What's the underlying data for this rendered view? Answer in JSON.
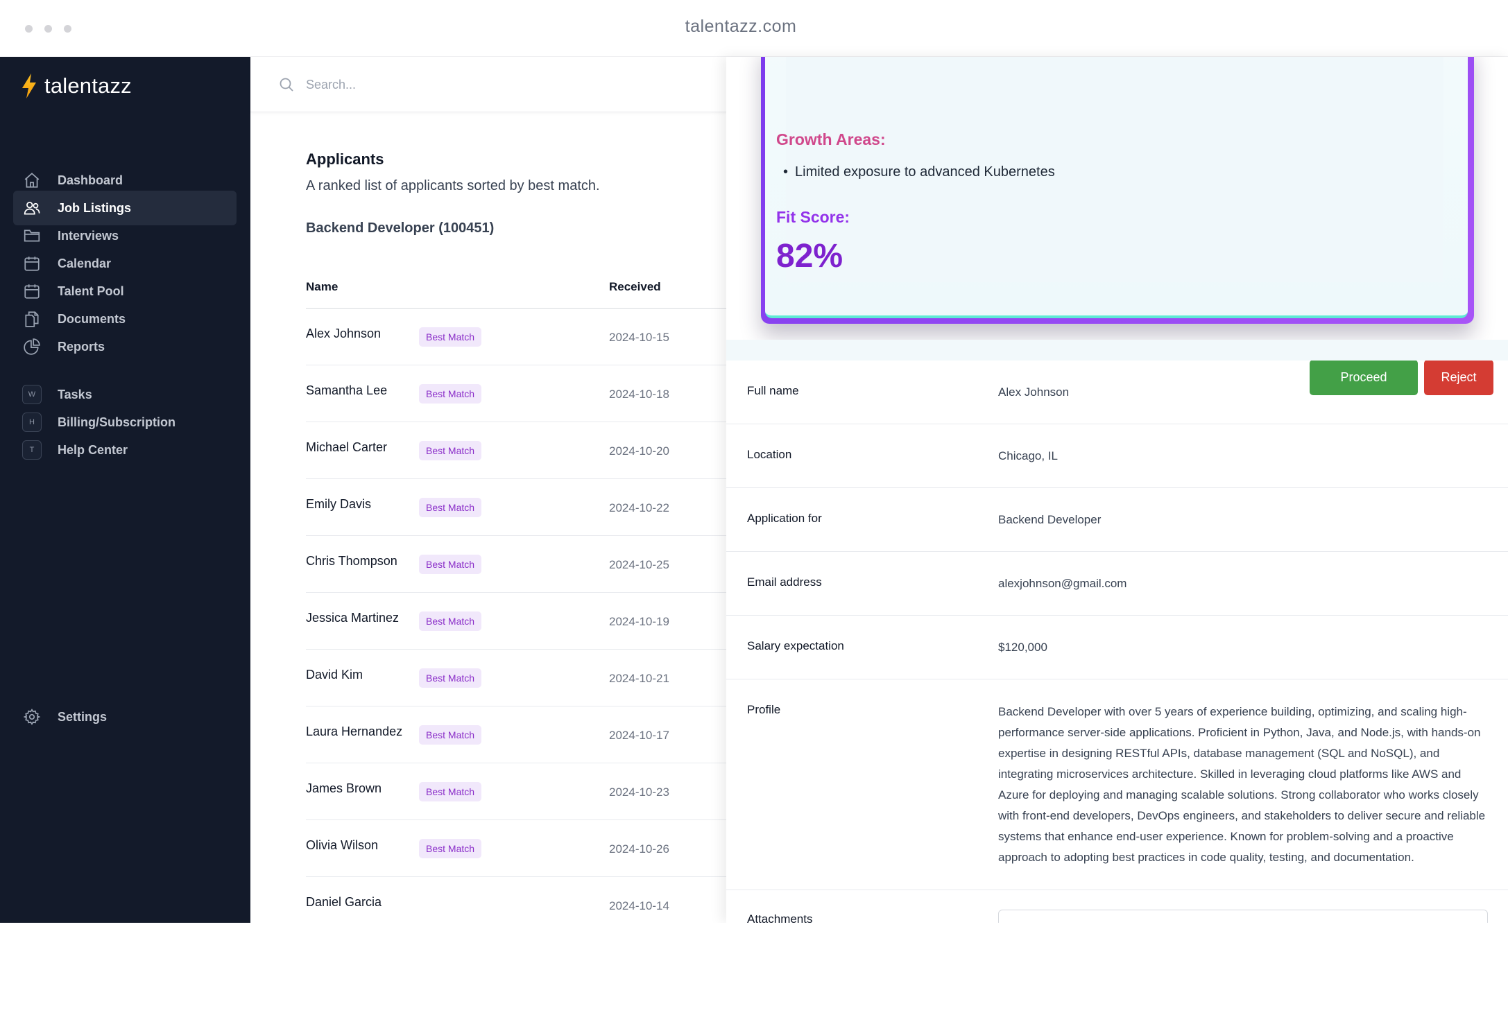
{
  "browser": {
    "url": "talentazz.com"
  },
  "brand": {
    "name": "talentazz"
  },
  "sidebar": {
    "items": [
      {
        "label": "Dashboard",
        "icon": "home-icon"
      },
      {
        "label": "Job Listings",
        "icon": "users-icon",
        "active": true
      },
      {
        "label": "Interviews",
        "icon": "folder-icon"
      },
      {
        "label": "Calendar",
        "icon": "calendar-icon"
      },
      {
        "label": "Talent Pool",
        "icon": "calendar-icon"
      },
      {
        "label": "Documents",
        "icon": "documents-icon"
      },
      {
        "label": "Reports",
        "icon": "pie-chart-icon"
      }
    ],
    "shortcuts": [
      {
        "key": "W",
        "label": "Tasks"
      },
      {
        "key": "H",
        "label": "Billing/Subscription"
      },
      {
        "key": "T",
        "label": "Help Center"
      }
    ],
    "settings_label": "Settings"
  },
  "search": {
    "placeholder": "Search..."
  },
  "applicants": {
    "title": "Applicants",
    "subtitle": "A ranked list of applicants sorted by best match.",
    "job": "Backend Developer (100451)",
    "columns": {
      "name": "Name",
      "received": "Received"
    },
    "rows": [
      {
        "name": "Alex Johnson",
        "badge": "Best Match",
        "received": "2024-10-15"
      },
      {
        "name": "Samantha Lee",
        "badge": "Best Match",
        "received": "2024-10-18"
      },
      {
        "name": "Michael Carter",
        "badge": "Best Match",
        "received": "2024-10-20"
      },
      {
        "name": "Emily Davis",
        "badge": "Best Match",
        "received": "2024-10-22"
      },
      {
        "name": "Chris Thompson",
        "badge": "Best Match",
        "received": "2024-10-25"
      },
      {
        "name": "Jessica Martinez",
        "badge": "Best Match",
        "received": "2024-10-19"
      },
      {
        "name": "David Kim",
        "badge": "Best Match",
        "received": "2024-10-21"
      },
      {
        "name": "Laura Hernandez",
        "badge": "Best Match",
        "received": "2024-10-17"
      },
      {
        "name": "James Brown",
        "badge": "Best Match",
        "received": "2024-10-23"
      },
      {
        "name": "Olivia Wilson",
        "badge": "Best Match",
        "received": "2024-10-26"
      },
      {
        "name": "Daniel Garcia",
        "badge": "",
        "received": "2024-10-14"
      }
    ]
  },
  "analysis": {
    "growth_title": "Growth Areas:",
    "growth_items": [
      "Limited exposure to advanced Kubernetes"
    ],
    "fit_title": "Fit Score:",
    "fit_score": "82%"
  },
  "actions": {
    "proceed": "Proceed",
    "reject": "Reject"
  },
  "details": {
    "full_name_label": "Full name",
    "full_name": "Alex Johnson",
    "location_label": "Location",
    "location": "Chicago, IL",
    "application_label": "Application for",
    "application": "Backend Developer",
    "email_label": "Email address",
    "email": "alexjohnson@gmail.com",
    "salary_label": "Salary expectation",
    "salary": "$120,000",
    "profile_label": "Profile",
    "profile": "Backend Developer with over 5 years of experience building, optimizing, and scaling high-performance server-side applications. Proficient in Python, Java, and Node.js, with hands-on expertise in designing RESTful APIs, database management (SQL and NoSQL), and integrating microservices architecture. Skilled in leveraging cloud platforms like AWS and Azure for deploying and managing scalable solutions. Strong collaborator who works closely with front-end developers, DevOps engineers, and stakeholders to deliver secure and reliable systems that enhance end-user experience. Known for problem-solving and a proactive approach to adopting best practices in code quality, testing, and documentation.",
    "attachments_label": "Attachments"
  },
  "colors": {
    "sidebar": "#131a2a",
    "accent": "#9333ea",
    "proceed": "#43a047",
    "reject": "#d43c33",
    "badge": "#8b2fc9"
  }
}
